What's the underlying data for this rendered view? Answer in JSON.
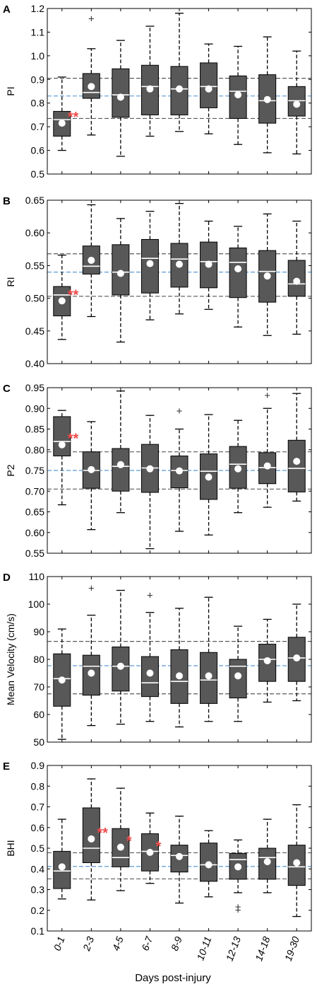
{
  "x_label": "Days post-injury",
  "categories": [
    "0-1",
    "2-3",
    "4-5",
    "6-7",
    "8-9",
    "10-11",
    "12-13",
    "14-18",
    "19-30"
  ],
  "colors": {
    "box": "#585858",
    "median": "#ffffff",
    "mean": "#ffffff",
    "ref_dash": "#5a5a5a",
    "ref_mean": "#5b9bd5",
    "sig": "#ee4a4a",
    "axis": "#000000",
    "text": "#000000"
  },
  "chart_data": [
    {
      "type": "box",
      "panel_letter": "A",
      "ylabel": "PI",
      "ylim": [
        0.5,
        1.2
      ],
      "yticks": [
        "0.5",
        "0.6",
        "0.7",
        "0.8",
        "0.9",
        "1.0",
        "1.1",
        "1.2"
      ],
      "ref_lines": {
        "lower": 0.735,
        "mean": 0.83,
        "upper": 0.905
      },
      "boxes": [
        {
          "whislo": 0.6,
          "q1": 0.66,
          "med": 0.73,
          "q3": 0.765,
          "whishi": 0.91,
          "mean": 0.715,
          "outliers": [],
          "sig": "**"
        },
        {
          "whislo": 0.665,
          "q1": 0.82,
          "med": 0.845,
          "q3": 0.925,
          "whishi": 1.03,
          "mean": 0.87,
          "outliers": [
            1.16
          ],
          "sig": ""
        },
        {
          "whislo": 0.575,
          "q1": 0.74,
          "med": 0.835,
          "q3": 0.945,
          "whishi": 1.065,
          "mean": 0.825,
          "outliers": [],
          "sig": ""
        },
        {
          "whislo": 0.66,
          "q1": 0.75,
          "med": 0.87,
          "q3": 0.96,
          "whishi": 1.125,
          "mean": 0.86,
          "outliers": [],
          "sig": ""
        },
        {
          "whislo": 0.68,
          "q1": 0.75,
          "med": 0.86,
          "q3": 0.955,
          "whishi": 1.18,
          "mean": 0.86,
          "outliers": [],
          "sig": ""
        },
        {
          "whislo": 0.67,
          "q1": 0.78,
          "med": 0.87,
          "q3": 0.97,
          "whishi": 1.05,
          "mean": 0.86,
          "outliers": [],
          "sig": ""
        },
        {
          "whislo": 0.625,
          "q1": 0.735,
          "med": 0.85,
          "q3": 0.915,
          "whishi": 1.04,
          "mean": 0.835,
          "outliers": [],
          "sig": ""
        },
        {
          "whislo": 0.59,
          "q1": 0.715,
          "med": 0.81,
          "q3": 0.92,
          "whishi": 1.08,
          "mean": 0.815,
          "outliers": [],
          "sig": ""
        },
        {
          "whislo": 0.585,
          "q1": 0.745,
          "med": 0.81,
          "q3": 0.87,
          "whishi": 1.02,
          "mean": 0.795,
          "outliers": [],
          "sig": ""
        }
      ]
    },
    {
      "type": "box",
      "panel_letter": "B",
      "ylabel": "RI",
      "ylim": [
        0.4,
        0.65
      ],
      "yticks": [
        "0.40",
        "0.45",
        "0.50",
        "0.55",
        "0.60",
        "0.65"
      ],
      "ref_lines": {
        "lower": 0.503,
        "mean": 0.54,
        "upper": 0.568
      },
      "boxes": [
        {
          "whislo": 0.437,
          "q1": 0.473,
          "med": 0.505,
          "q3": 0.518,
          "whishi": 0.566,
          "mean": 0.496,
          "outliers": [],
          "sig": "**"
        },
        {
          "whislo": 0.472,
          "q1": 0.537,
          "med": 0.549,
          "q3": 0.58,
          "whishi": 0.643,
          "mean": 0.558,
          "outliers": [],
          "sig": ""
        },
        {
          "whislo": 0.433,
          "q1": 0.505,
          "med": 0.54,
          "q3": 0.582,
          "whishi": 0.622,
          "mean": 0.538,
          "outliers": [],
          "sig": ""
        },
        {
          "whislo": 0.467,
          "q1": 0.508,
          "med": 0.561,
          "q3": 0.59,
          "whishi": 0.633,
          "mean": 0.553,
          "outliers": [],
          "sig": ""
        },
        {
          "whislo": 0.476,
          "q1": 0.517,
          "med": 0.56,
          "q3": 0.584,
          "whishi": 0.645,
          "mean": 0.552,
          "outliers": [],
          "sig": ""
        },
        {
          "whislo": 0.483,
          "q1": 0.516,
          "med": 0.556,
          "q3": 0.586,
          "whishi": 0.618,
          "mean": 0.552,
          "outliers": [],
          "sig": ""
        },
        {
          "whislo": 0.456,
          "q1": 0.501,
          "med": 0.555,
          "q3": 0.577,
          "whishi": 0.61,
          "mean": 0.545,
          "outliers": [],
          "sig": ""
        },
        {
          "whislo": 0.443,
          "q1": 0.494,
          "med": 0.541,
          "q3": 0.573,
          "whishi": 0.629,
          "mean": 0.534,
          "outliers": [],
          "sig": ""
        },
        {
          "whislo": 0.445,
          "q1": 0.503,
          "med": 0.522,
          "q3": 0.558,
          "whishi": 0.618,
          "mean": 0.526,
          "outliers": [],
          "sig": ""
        }
      ]
    },
    {
      "type": "box",
      "panel_letter": "C",
      "ylabel": "P2",
      "ylim": [
        0.55,
        0.95
      ],
      "yticks": [
        "0.55",
        "0.60",
        "0.65",
        "0.70",
        "0.75",
        "0.80",
        "0.85",
        "0.90",
        "0.95"
      ],
      "ref_lines": {
        "lower": 0.705,
        "mean": 0.75,
        "upper": 0.795
      },
      "boxes": [
        {
          "whislo": 0.667,
          "q1": 0.785,
          "med": 0.82,
          "q3": 0.88,
          "whishi": 0.895,
          "mean": 0.812,
          "outliers": [],
          "sig": "**"
        },
        {
          "whislo": 0.607,
          "q1": 0.707,
          "med": 0.75,
          "q3": 0.795,
          "whishi": 0.868,
          "mean": 0.752,
          "outliers": [],
          "sig": ""
        },
        {
          "whislo": 0.648,
          "q1": 0.7,
          "med": 0.76,
          "q3": 0.803,
          "whishi": 0.942,
          "mean": 0.764,
          "outliers": [],
          "sig": ""
        },
        {
          "whislo": 0.561,
          "q1": 0.697,
          "med": 0.756,
          "q3": 0.813,
          "whishi": 0.883,
          "mean": 0.754,
          "outliers": [],
          "sig": ""
        },
        {
          "whislo": 0.603,
          "q1": 0.708,
          "med": 0.75,
          "q3": 0.785,
          "whishi": 0.85,
          "mean": 0.749,
          "outliers": [
            0.895
          ],
          "sig": ""
        },
        {
          "whislo": 0.594,
          "q1": 0.68,
          "med": 0.748,
          "q3": 0.79,
          "whishi": 0.885,
          "mean": 0.734,
          "outliers": [],
          "sig": ""
        },
        {
          "whislo": 0.648,
          "q1": 0.707,
          "med": 0.765,
          "q3": 0.808,
          "whishi": 0.871,
          "mean": 0.754,
          "outliers": [],
          "sig": ""
        },
        {
          "whislo": 0.661,
          "q1": 0.718,
          "med": 0.757,
          "q3": 0.793,
          "whishi": 0.9,
          "mean": 0.761,
          "outliers": [
            0.933
          ],
          "sig": ""
        },
        {
          "whislo": 0.676,
          "q1": 0.698,
          "med": 0.755,
          "q3": 0.823,
          "whishi": 0.936,
          "mean": 0.772,
          "outliers": [],
          "sig": ""
        }
      ]
    },
    {
      "type": "box",
      "panel_letter": "D",
      "ylabel": "Mean Velocity (cm/s)",
      "ylim": [
        50,
        110
      ],
      "yticks": [
        "50",
        "60",
        "70",
        "80",
        "90",
        "100",
        "110"
      ],
      "ref_lines": {
        "lower": 67.5,
        "mean": 77.7,
        "upper": 86.5
      },
      "boxes": [
        {
          "whislo": 51.0,
          "q1": 63.0,
          "med": 73.0,
          "q3": 82.0,
          "whishi": 91.0,
          "mean": 72.5,
          "outliers": [],
          "sig": ""
        },
        {
          "whislo": 56.0,
          "q1": 67.0,
          "med": 77.5,
          "q3": 81.5,
          "whishi": 96.0,
          "mean": 75.0,
          "outliers": [
            106.0
          ],
          "sig": ""
        },
        {
          "whislo": 56.5,
          "q1": 68.5,
          "med": 77.5,
          "q3": 84.5,
          "whishi": 105.0,
          "mean": 77.5,
          "outliers": [],
          "sig": ""
        },
        {
          "whislo": 57.5,
          "q1": 66.5,
          "med": 71.5,
          "q3": 81.0,
          "whishi": 97.0,
          "mean": 75.0,
          "outliers": [
            103.5
          ],
          "sig": ""
        },
        {
          "whislo": 55.5,
          "q1": 64.0,
          "med": 72.0,
          "q3": 83.5,
          "whishi": 98.5,
          "mean": 74.0,
          "outliers": [],
          "sig": ""
        },
        {
          "whislo": 57.5,
          "q1": 64.0,
          "med": 72.5,
          "q3": 82.5,
          "whishi": 102.5,
          "mean": 74.0,
          "outliers": [],
          "sig": ""
        },
        {
          "whislo": 57.5,
          "q1": 66.0,
          "med": 77.5,
          "q3": 80.0,
          "whishi": 92.0,
          "mean": 74.0,
          "outliers": [],
          "sig": ""
        },
        {
          "whislo": 64.5,
          "q1": 72.0,
          "med": 80.0,
          "q3": 85.5,
          "whishi": 94.5,
          "mean": 79.5,
          "outliers": [],
          "sig": ""
        },
        {
          "whislo": 65.0,
          "q1": 72.0,
          "med": 80.5,
          "q3": 88.0,
          "whishi": 100.0,
          "mean": 80.5,
          "outliers": [],
          "sig": ""
        }
      ]
    },
    {
      "type": "box",
      "panel_letter": "E",
      "ylabel": "BHI",
      "ylim": [
        0.1,
        0.9
      ],
      "yticks": [
        "0.1",
        "0.2",
        "0.3",
        "0.4",
        "0.5",
        "0.6",
        "0.7",
        "0.8",
        "0.9"
      ],
      "ref_lines": {
        "lower": 0.352,
        "mean": 0.412,
        "upper": 0.478
      },
      "boxes": [
        {
          "whislo": 0.255,
          "q1": 0.305,
          "med": 0.39,
          "q3": 0.485,
          "whishi": 0.64,
          "mean": 0.41,
          "outliers": [],
          "sig": ""
        },
        {
          "whislo": 0.25,
          "q1": 0.43,
          "med": 0.5,
          "q3": 0.695,
          "whishi": 0.835,
          "mean": 0.545,
          "outliers": [],
          "sig": "**"
        },
        {
          "whislo": 0.295,
          "q1": 0.41,
          "med": 0.455,
          "q3": 0.595,
          "whishi": 0.79,
          "mean": 0.505,
          "outliers": [],
          "sig": "*"
        },
        {
          "whislo": 0.33,
          "q1": 0.39,
          "med": 0.485,
          "q3": 0.57,
          "whishi": 0.67,
          "mean": 0.48,
          "outliers": [],
          "sig": "*"
        },
        {
          "whislo": 0.235,
          "q1": 0.385,
          "med": 0.465,
          "q3": 0.515,
          "whishi": 0.655,
          "mean": 0.46,
          "outliers": [],
          "sig": ""
        },
        {
          "whislo": 0.265,
          "q1": 0.34,
          "med": 0.42,
          "q3": 0.525,
          "whishi": 0.585,
          "mean": 0.42,
          "outliers": [],
          "sig": ""
        },
        {
          "whislo": 0.285,
          "q1": 0.35,
          "med": 0.445,
          "q3": 0.475,
          "whishi": 0.54,
          "mean": 0.41,
          "outliers": [
            0.22,
            0.205
          ],
          "sig": ""
        },
        {
          "whislo": 0.285,
          "q1": 0.35,
          "med": 0.455,
          "q3": 0.5,
          "whishi": 0.64,
          "mean": 0.435,
          "outliers": [],
          "sig": ""
        },
        {
          "whislo": 0.17,
          "q1": 0.32,
          "med": 0.41,
          "q3": 0.515,
          "whishi": 0.71,
          "mean": 0.43,
          "outliers": [],
          "sig": ""
        }
      ]
    }
  ]
}
